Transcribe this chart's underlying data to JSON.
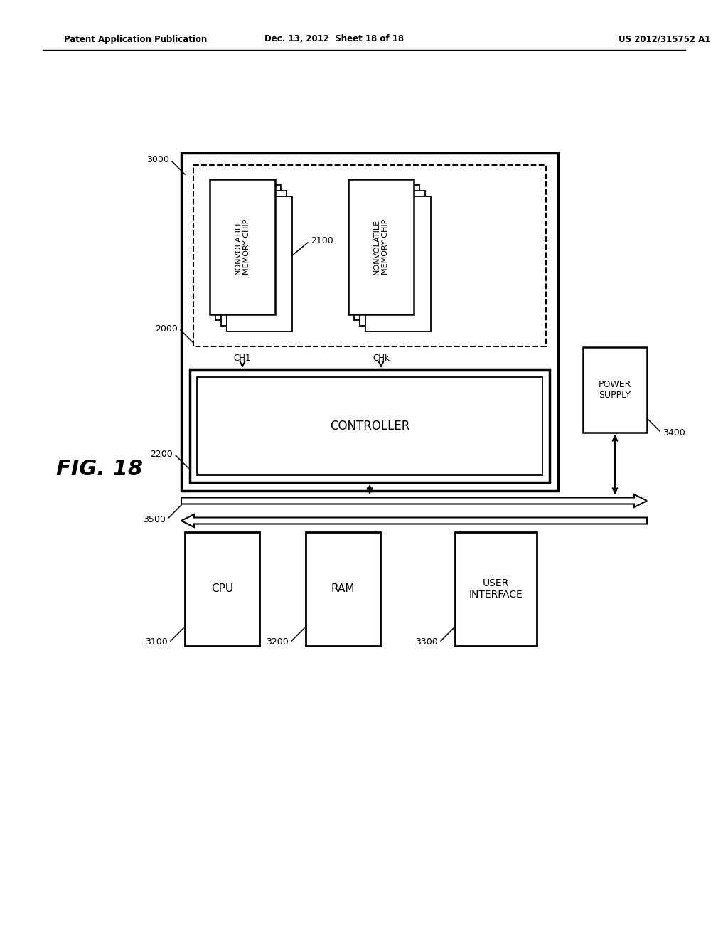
{
  "background_color": "#ffffff",
  "header_left": "Patent Application Publication",
  "header_mid": "Dec. 13, 2012  Sheet 18 of 18",
  "header_right": "US 2012/315752 A1",
  "fig_label": "FIG. 18"
}
